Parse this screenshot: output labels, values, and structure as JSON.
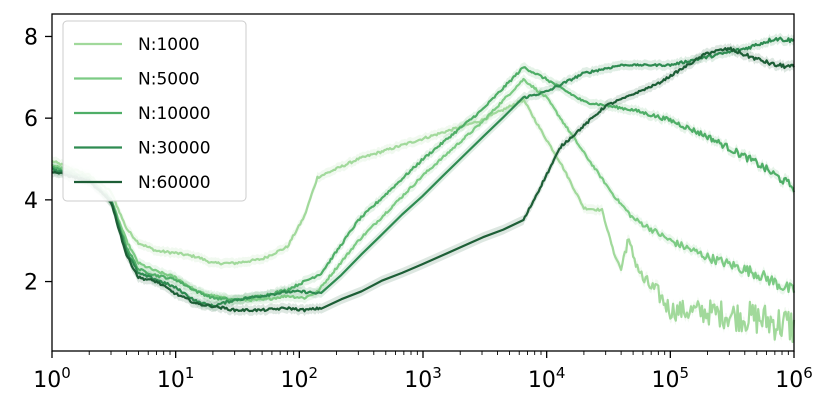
{
  "chart_data": {
    "type": "line",
    "xscale": "log",
    "xlim": [
      1,
      1000000
    ],
    "ylim": [
      0.3,
      8.55
    ],
    "x_ticks": [
      {
        "value": 1,
        "base": "10",
        "exp": "0"
      },
      {
        "value": 10,
        "base": "10",
        "exp": "1"
      },
      {
        "value": 100,
        "base": "10",
        "exp": "2"
      },
      {
        "value": 1000,
        "base": "10",
        "exp": "3"
      },
      {
        "value": 10000,
        "base": "10",
        "exp": "4"
      },
      {
        "value": 100000,
        "base": "10",
        "exp": "5"
      },
      {
        "value": 1000000,
        "base": "10",
        "exp": "6"
      }
    ],
    "y_ticks": [
      {
        "value": 2,
        "label": "2"
      },
      {
        "value": 4,
        "label": "4"
      },
      {
        "value": 6,
        "label": "6"
      },
      {
        "value": 8,
        "label": "8"
      }
    ],
    "legend_position": "top-left",
    "grid": false,
    "series": [
      {
        "name": "N:1000",
        "color": "#a1d99b",
        "noise": 0.35,
        "points": [
          [
            1,
            4.95
          ],
          [
            2,
            4.6
          ],
          [
            3,
            4.2
          ],
          [
            4,
            3.3
          ],
          [
            5,
            2.95
          ],
          [
            7,
            2.75
          ],
          [
            10,
            2.7
          ],
          [
            15,
            2.6
          ],
          [
            20,
            2.45
          ],
          [
            30,
            2.45
          ],
          [
            50,
            2.55
          ],
          [
            80,
            2.85
          ],
          [
            110,
            3.6
          ],
          [
            140,
            4.55
          ],
          [
            300,
            5.0
          ],
          [
            1000,
            5.5
          ],
          [
            3000,
            5.95
          ],
          [
            6500,
            6.45
          ],
          [
            9000,
            5.7
          ],
          [
            13000,
            4.9
          ],
          [
            20000,
            3.8
          ],
          [
            28000,
            3.75
          ],
          [
            35000,
            2.7
          ],
          [
            40000,
            2.3
          ],
          [
            45000,
            3.0
          ],
          [
            60000,
            2.05
          ],
          [
            80000,
            1.7
          ],
          [
            100000,
            1.3
          ],
          [
            200000,
            1.25
          ],
          [
            500000,
            1.1
          ],
          [
            1000000,
            0.9
          ]
        ]
      },
      {
        "name": "N:5000",
        "color": "#7ccb84",
        "noise": 0.12,
        "points": [
          [
            1,
            4.85
          ],
          [
            2,
            4.55
          ],
          [
            3,
            4.0
          ],
          [
            4,
            3.0
          ],
          [
            5,
            2.45
          ],
          [
            7,
            2.25
          ],
          [
            10,
            2.1
          ],
          [
            15,
            1.75
          ],
          [
            20,
            1.65
          ],
          [
            30,
            1.55
          ],
          [
            50,
            1.55
          ],
          [
            80,
            1.65
          ],
          [
            110,
            1.6
          ],
          [
            140,
            1.75
          ],
          [
            300,
            3.0
          ],
          [
            1000,
            4.6
          ],
          [
            3000,
            5.9
          ],
          [
            6500,
            6.95
          ],
          [
            10000,
            6.5
          ],
          [
            20000,
            5.15
          ],
          [
            35000,
            4.1
          ],
          [
            50000,
            3.55
          ],
          [
            100000,
            3.0
          ],
          [
            200000,
            2.6
          ],
          [
            500000,
            2.2
          ],
          [
            1000000,
            1.75
          ]
        ]
      },
      {
        "name": "N:10000",
        "color": "#4fae67",
        "noise": 0.08,
        "points": [
          [
            1,
            4.8
          ],
          [
            2,
            4.5
          ],
          [
            3,
            4.0
          ],
          [
            4,
            2.85
          ],
          [
            5,
            2.3
          ],
          [
            7,
            2.15
          ],
          [
            10,
            2.05
          ],
          [
            15,
            1.75
          ],
          [
            20,
            1.6
          ],
          [
            30,
            1.55
          ],
          [
            50,
            1.65
          ],
          [
            80,
            1.8
          ],
          [
            110,
            2.0
          ],
          [
            150,
            2.2
          ],
          [
            300,
            3.5
          ],
          [
            1000,
            5.0
          ],
          [
            3000,
            6.2
          ],
          [
            6500,
            7.25
          ],
          [
            10000,
            6.95
          ],
          [
            20000,
            6.4
          ],
          [
            50000,
            6.2
          ],
          [
            100000,
            5.95
          ],
          [
            200000,
            5.55
          ],
          [
            500000,
            4.9
          ],
          [
            1000000,
            4.3
          ]
        ]
      },
      {
        "name": "N:30000",
        "color": "#2e8b51",
        "noise": 0.04,
        "points": [
          [
            1,
            4.75
          ],
          [
            2,
            4.45
          ],
          [
            3,
            4.0
          ],
          [
            4,
            2.75
          ],
          [
            5,
            2.2
          ],
          [
            7,
            2.05
          ],
          [
            10,
            1.85
          ],
          [
            15,
            1.5
          ],
          [
            20,
            1.4
          ],
          [
            30,
            1.55
          ],
          [
            50,
            1.65
          ],
          [
            80,
            1.75
          ],
          [
            110,
            1.75
          ],
          [
            150,
            1.7
          ],
          [
            6500,
            6.5
          ],
          [
            10000,
            6.65
          ],
          [
            20000,
            7.1
          ],
          [
            40000,
            7.3
          ],
          [
            100000,
            7.3
          ],
          [
            200000,
            7.5
          ],
          [
            400000,
            7.7
          ],
          [
            700000,
            7.95
          ],
          [
            1000000,
            7.9
          ]
        ]
      },
      {
        "name": "N:60000",
        "color": "#1d5e36",
        "noise": 0.04,
        "points": [
          [
            1,
            4.7
          ],
          [
            2,
            4.45
          ],
          [
            3,
            3.95
          ],
          [
            4,
            2.65
          ],
          [
            5,
            2.1
          ],
          [
            7,
            2.0
          ],
          [
            10,
            1.7
          ],
          [
            15,
            1.45
          ],
          [
            20,
            1.4
          ],
          [
            30,
            1.3
          ],
          [
            50,
            1.3
          ],
          [
            80,
            1.35
          ],
          [
            110,
            1.3
          ],
          [
            150,
            1.35
          ],
          [
            6500,
            3.5
          ],
          [
            13000,
            5.3
          ],
          [
            30000,
            6.3
          ],
          [
            80000,
            6.85
          ],
          [
            200000,
            7.6
          ],
          [
            300000,
            7.7
          ],
          [
            400000,
            7.55
          ],
          [
            700000,
            7.3
          ],
          [
            1000000,
            7.25
          ]
        ]
      }
    ]
  }
}
